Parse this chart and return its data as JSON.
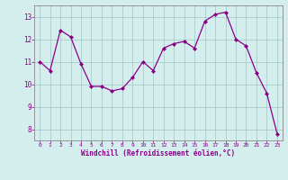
{
  "x": [
    0,
    1,
    2,
    3,
    4,
    5,
    6,
    7,
    8,
    9,
    10,
    11,
    12,
    13,
    14,
    15,
    16,
    17,
    18,
    19,
    20,
    21,
    22,
    23
  ],
  "y": [
    11.0,
    10.6,
    12.4,
    12.1,
    10.9,
    9.9,
    9.9,
    9.7,
    9.8,
    10.3,
    11.0,
    10.6,
    11.6,
    11.8,
    11.9,
    11.6,
    12.8,
    13.1,
    13.2,
    12.0,
    11.7,
    10.5,
    9.6,
    7.8
  ],
  "xlim": [
    -0.5,
    23.5
  ],
  "ylim": [
    7.5,
    13.5
  ],
  "yticks": [
    8,
    9,
    10,
    11,
    12,
    13
  ],
  "xticks": [
    0,
    1,
    2,
    3,
    4,
    5,
    6,
    7,
    8,
    9,
    10,
    11,
    12,
    13,
    14,
    15,
    16,
    17,
    18,
    19,
    20,
    21,
    22,
    23
  ],
  "xlabel": "Windchill (Refroidissement éolien,°C)",
  "line_color": "#880088",
  "marker": "D",
  "marker_size": 2.0,
  "bg_color": "#d4eeee",
  "grid_color": "#aacccc",
  "spine_color": "#888888"
}
